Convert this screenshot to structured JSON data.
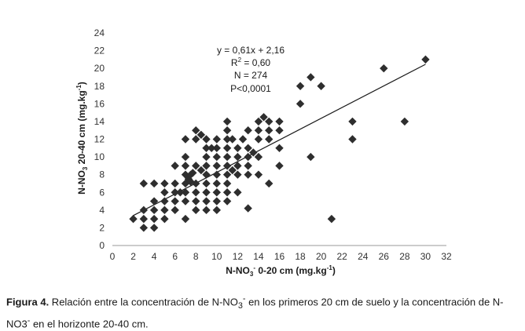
{
  "chart_data": {
    "type": "scatter",
    "xlabel": {
      "prefix": "N-NO",
      "sub": "3",
      "sup": "-",
      "suffix": " 0-20 cm (mg.kg",
      "unit_sup": "-1",
      "end": ")"
    },
    "ylabel": {
      "prefix": "N-NO",
      "sub": "3",
      "suffix": " 20-40 cm (mg.kg",
      "unit_sup": "-1",
      "end": ")"
    },
    "xlim": [
      0,
      32
    ],
    "ylim": [
      0,
      24
    ],
    "xticks": [
      0,
      2,
      4,
      6,
      8,
      10,
      12,
      14,
      16,
      18,
      20,
      22,
      24,
      26,
      28,
      30,
      32
    ],
    "yticks": [
      0,
      2,
      4,
      6,
      8,
      10,
      12,
      14,
      16,
      18,
      20,
      22,
      24
    ],
    "trendline": {
      "slope": 0.61,
      "intercept": 2.16,
      "x_start": 2,
      "x_end": 30
    },
    "annotations": {
      "equation": "y = 0,61x + 2,16",
      "r2_prefix": "R",
      "r2_sup": "2",
      "r2_value": " = 0,60",
      "n": "N = 274",
      "p": "P<0,0001"
    },
    "points": [
      [
        2,
        3
      ],
      [
        3,
        2
      ],
      [
        3,
        3
      ],
      [
        3,
        4
      ],
      [
        3,
        7
      ],
      [
        4,
        2
      ],
      [
        4,
        3
      ],
      [
        4,
        4
      ],
      [
        4,
        5
      ],
      [
        4,
        7
      ],
      [
        5,
        3
      ],
      [
        5,
        4
      ],
      [
        5,
        5
      ],
      [
        5,
        6
      ],
      [
        5,
        7
      ],
      [
        6,
        4
      ],
      [
        6,
        5
      ],
      [
        6,
        6
      ],
      [
        6,
        7
      ],
      [
        6,
        9
      ],
      [
        6.5,
        6
      ],
      [
        7,
        3
      ],
      [
        7,
        5
      ],
      [
        7,
        6
      ],
      [
        7,
        7
      ],
      [
        7,
        8
      ],
      [
        7,
        9
      ],
      [
        7,
        10
      ],
      [
        7,
        12
      ],
      [
        7.3,
        7.5
      ],
      [
        7.5,
        8
      ],
      [
        7.5,
        7.2
      ],
      [
        7.7,
        8.2
      ],
      [
        8,
        4
      ],
      [
        8,
        5
      ],
      [
        8,
        6
      ],
      [
        8,
        7
      ],
      [
        8,
        9
      ],
      [
        8,
        12
      ],
      [
        8,
        13
      ],
      [
        8.5,
        12.5
      ],
      [
        8.5,
        8.5
      ],
      [
        9,
        4
      ],
      [
        9,
        5
      ],
      [
        9,
        6
      ],
      [
        9,
        7
      ],
      [
        9,
        8
      ],
      [
        9,
        9
      ],
      [
        9,
        10
      ],
      [
        9,
        11
      ],
      [
        9,
        12
      ],
      [
        9.5,
        11
      ],
      [
        10,
        4
      ],
      [
        10,
        5
      ],
      [
        10,
        6
      ],
      [
        10,
        7
      ],
      [
        10,
        8
      ],
      [
        10,
        9
      ],
      [
        10,
        10
      ],
      [
        10,
        11
      ],
      [
        10,
        12
      ],
      [
        11,
        5
      ],
      [
        11,
        6
      ],
      [
        11,
        7
      ],
      [
        11,
        8
      ],
      [
        11,
        9
      ],
      [
        11,
        10
      ],
      [
        11,
        11
      ],
      [
        11,
        12
      ],
      [
        11,
        13
      ],
      [
        11,
        14
      ],
      [
        11.5,
        8.5
      ],
      [
        11.5,
        12
      ],
      [
        12,
        6
      ],
      [
        12,
        8
      ],
      [
        12,
        9
      ],
      [
        12,
        10
      ],
      [
        12,
        11
      ],
      [
        12.5,
        12
      ],
      [
        13,
        4.2
      ],
      [
        13,
        8
      ],
      [
        13,
        9
      ],
      [
        13,
        10
      ],
      [
        13,
        11
      ],
      [
        13,
        13
      ],
      [
        13.5,
        10.5
      ],
      [
        14,
        8
      ],
      [
        14,
        10
      ],
      [
        14,
        12
      ],
      [
        14,
        13
      ],
      [
        14,
        14
      ],
      [
        14.5,
        14.5
      ],
      [
        15,
        7
      ],
      [
        15,
        12
      ],
      [
        15,
        13
      ],
      [
        15,
        14
      ],
      [
        16,
        9
      ],
      [
        16,
        11
      ],
      [
        16,
        13
      ],
      [
        16,
        14
      ],
      [
        18,
        16
      ],
      [
        18,
        18
      ],
      [
        19,
        10
      ],
      [
        19,
        19
      ],
      [
        20,
        18
      ],
      [
        21,
        3
      ],
      [
        23,
        12
      ],
      [
        23,
        14
      ],
      [
        26,
        20
      ],
      [
        28,
        14
      ],
      [
        30,
        21
      ]
    ]
  },
  "caption": {
    "label": "Figura 4.",
    "text_a": " Relación entre la concentración de N-NO",
    "text_sub": "3",
    "text_sup": "-",
    "text_b": " en los primeros 20 cm de suelo y la concentración de N-NO3",
    "text_sup2": "-",
    "text_c": " en el horizonte 20-40 cm."
  }
}
